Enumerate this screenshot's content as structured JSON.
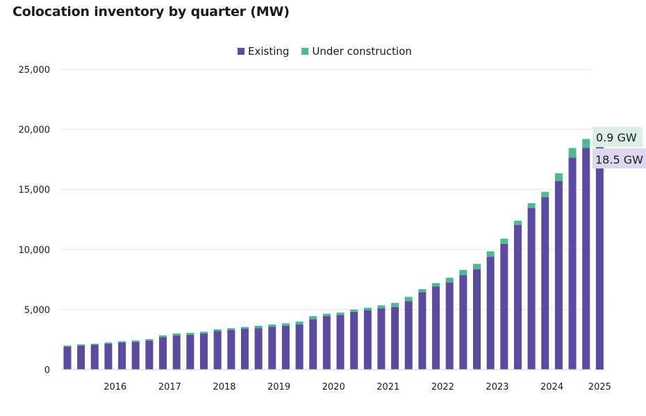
{
  "chart_data": {
    "type": "bar",
    "stacked": true,
    "title": "Colocation inventory by quarter (MW)",
    "xlabel": "",
    "ylabel": "",
    "ylim": [
      0,
      25000
    ],
    "yticks": [
      0,
      5000,
      10000,
      15000,
      20000,
      25000
    ],
    "ytick_labels": [
      "0",
      "5,000",
      "10,000",
      "15,000",
      "20,000",
      "25,000"
    ],
    "xtick_labels": [
      "2016",
      "2017",
      "2018",
      "2019",
      "2020",
      "2021",
      "2022",
      "2023",
      "2024",
      "2025"
    ],
    "grid": "horizontal",
    "legend_position": "top-center",
    "categories": [
      "Q1 2015",
      "Q2 2015",
      "Q3 2015",
      "Q4 2015",
      "Q1 2016",
      "Q2 2016",
      "Q3 2016",
      "Q4 2016",
      "Q1 2017",
      "Q2 2017",
      "Q3 2017",
      "Q4 2017",
      "Q1 2018",
      "Q2 2018",
      "Q3 2018",
      "Q4 2018",
      "Q1 2019",
      "Q2 2019",
      "Q3 2019",
      "Q4 2019",
      "Q1 2020",
      "Q2 2020",
      "Q3 2020",
      "Q4 2020",
      "Q1 2021",
      "Q2 2021",
      "Q3 2021",
      "Q4 2021",
      "Q1 2022",
      "Q2 2022",
      "Q3 2022",
      "Q4 2022",
      "Q1 2023",
      "Q2 2023",
      "Q3 2023",
      "Q4 2023",
      "Q1 2024",
      "Q2 2024",
      "Q3 2024",
      "Q4 2024"
    ],
    "series": [
      {
        "name": "Existing",
        "color": "#5b4a9f",
        "values": [
          1900,
          2000,
          2050,
          2150,
          2250,
          2300,
          2400,
          2700,
          2850,
          2900,
          3000,
          3200,
          3300,
          3400,
          3450,
          3550,
          3650,
          3750,
          4200,
          4450,
          4550,
          4800,
          4950,
          5100,
          5200,
          5700,
          6450,
          6900,
          7250,
          7850,
          8350,
          9400,
          10450,
          12050,
          13450,
          14350,
          15700,
          17650,
          18450,
          18500
        ],
        "data_labels": {
          "39": "18.5 GW"
        }
      },
      {
        "name": "Under construction",
        "color": "#4fb894",
        "values": [
          100,
          100,
          100,
          100,
          100,
          120,
          130,
          150,
          150,
          160,
          150,
          150,
          150,
          150,
          200,
          200,
          200,
          250,
          250,
          200,
          200,
          200,
          200,
          250,
          350,
          350,
          250,
          300,
          400,
          450,
          450,
          450,
          450,
          350,
          400,
          450,
          650,
          800,
          750,
          900
        ],
        "data_labels": {
          "39": "0.9 GW"
        }
      }
    ]
  },
  "callout_colors": {
    "Existing": "#ddd8ef",
    "Under construction": "#dcefe6"
  }
}
